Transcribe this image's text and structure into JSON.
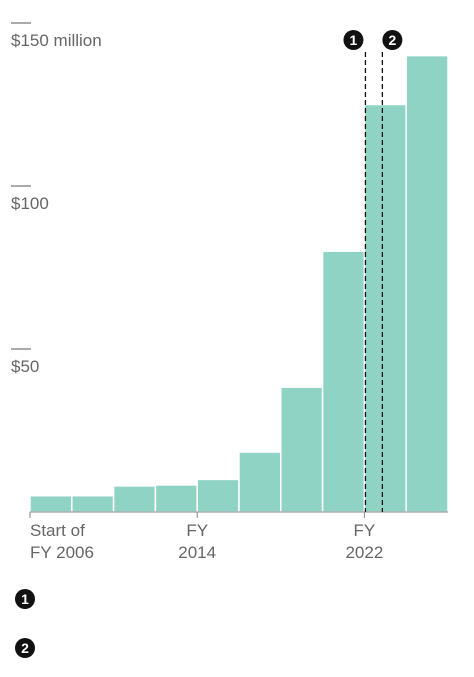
{
  "chart_data": {
    "type": "histogram",
    "bins": [
      2006,
      2008,
      2010,
      2012,
      2014,
      2016,
      2018,
      2020,
      2022,
      2024,
      2026
    ],
    "values": [
      5,
      5,
      8,
      8.3,
      10,
      18.4,
      38.3,
      80,
      125,
      140
    ],
    "color": "#8fd3c5",
    "xlim": [
      2006,
      2026
    ],
    "xticks": [
      {
        "value": 2006,
        "label": "Start of\nFY 2006"
      },
      {
        "value": 2014,
        "label": "FY\n2014"
      },
      {
        "value": 2022,
        "label": "FY\n2022"
      }
    ],
    "ylim": [
      0,
      150
    ],
    "yticks": [
      {
        "value": 50,
        "label": "$50"
      },
      {
        "value": 100,
        "label": "$100"
      },
      {
        "value": 150,
        "label": "$150 million"
      }
    ],
    "annotations": [
      {
        "label": "1",
        "x": 2022.05
      },
      {
        "label": "2",
        "x": 2022.86
      }
    ]
  }
}
